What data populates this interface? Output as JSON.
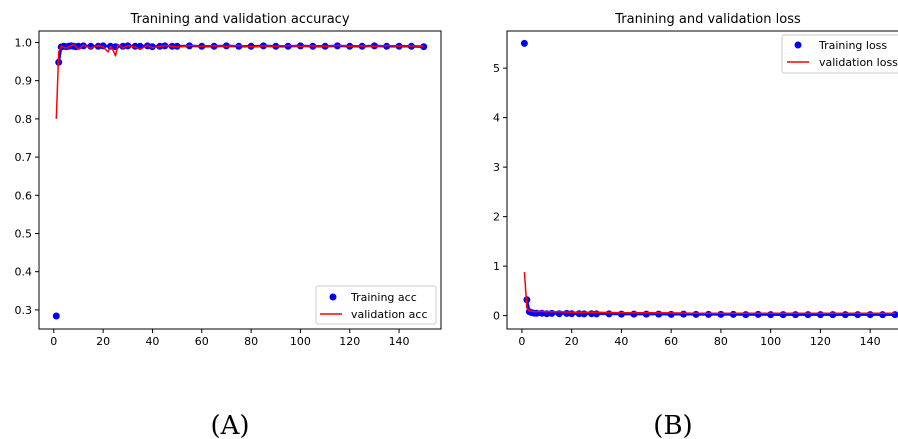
{
  "panel_labels": {
    "a": "(A)",
    "b": "(B)"
  },
  "colors": {
    "training": "#0000ff",
    "validation": "#ff0000",
    "axis": "#000000"
  },
  "chart_data": [
    {
      "type": "line",
      "title": "Tranining and validation accuracy",
      "xlabel": "",
      "ylabel": "",
      "xlim": [
        -6,
        157
      ],
      "ylim": [
        0.25,
        1.03
      ],
      "x_ticks": [
        0,
        20,
        40,
        60,
        80,
        100,
        120,
        140
      ],
      "y_ticks": [
        0.3,
        0.4,
        0.5,
        0.6,
        0.7,
        0.8,
        0.9,
        1.0
      ],
      "y_tick_labels": [
        "0.3",
        "0.4",
        "0.5",
        "0.6",
        "0.7",
        "0.8",
        "0.9",
        "1.0"
      ],
      "legend_position": "bottom-right",
      "series": [
        {
          "name": "Training acc",
          "style": "points",
          "x": [
            1,
            2,
            3,
            4,
            5,
            6,
            7,
            8,
            9,
            10,
            12,
            15,
            18,
            20,
            23,
            25,
            28,
            30,
            33,
            35,
            38,
            40,
            43,
            45,
            48,
            50,
            55,
            60,
            65,
            70,
            75,
            80,
            85,
            90,
            95,
            100,
            105,
            110,
            115,
            120,
            125,
            130,
            135,
            140,
            145,
            150
          ],
          "values": [
            0.284,
            0.948,
            0.988,
            0.99,
            0.989,
            0.99,
            0.991,
            0.99,
            0.989,
            0.99,
            0.991,
            0.99,
            0.99,
            0.991,
            0.99,
            0.989,
            0.99,
            0.991,
            0.99,
            0.99,
            0.991,
            0.989,
            0.99,
            0.991,
            0.99,
            0.99,
            0.991,
            0.99,
            0.99,
            0.991,
            0.99,
            0.99,
            0.991,
            0.99,
            0.99,
            0.991,
            0.99,
            0.99,
            0.991,
            0.99,
            0.99,
            0.991,
            0.99,
            0.99,
            0.99,
            0.989
          ]
        },
        {
          "name": "validation acc",
          "style": "line",
          "x": [
            1,
            2,
            3,
            5,
            8,
            10,
            12,
            15,
            18,
            20,
            22,
            23,
            24,
            25,
            26,
            28,
            30,
            33,
            35,
            38,
            40,
            45,
            50,
            55,
            60,
            65,
            70,
            75,
            80,
            85,
            90,
            95,
            100,
            105,
            110,
            115,
            120,
            125,
            130,
            135,
            140,
            145,
            150
          ],
          "values": [
            0.8,
            0.975,
            0.99,
            0.985,
            0.995,
            0.982,
            0.993,
            0.985,
            0.992,
            0.988,
            0.975,
            0.99,
            0.98,
            0.965,
            0.995,
            0.985,
            0.992,
            0.988,
            0.982,
            0.993,
            0.986,
            0.992,
            0.988,
            0.992,
            0.99,
            0.991,
            0.99,
            0.992,
            0.989,
            0.991,
            0.99,
            0.992,
            0.99,
            0.991,
            0.99,
            0.992,
            0.99,
            0.991,
            0.99,
            0.992,
            0.99,
            0.991,
            0.99
          ]
        }
      ]
    },
    {
      "type": "line",
      "title": "Tranining and validation loss",
      "xlabel": "",
      "ylabel": "",
      "xlim": [
        -6,
        152
      ],
      "ylim": [
        -0.27,
        5.75
      ],
      "x_ticks": [
        0,
        20,
        40,
        60,
        80,
        100,
        120,
        140
      ],
      "y_ticks": [
        0,
        1,
        2,
        3,
        4,
        5
      ],
      "y_tick_labels": [
        "0",
        "1",
        "2",
        "3",
        "4",
        "5"
      ],
      "legend_position": "top-right",
      "series": [
        {
          "name": "Training loss",
          "style": "points",
          "x": [
            1,
            2,
            3,
            4,
            5,
            6,
            8,
            10,
            12,
            15,
            18,
            20,
            23,
            25,
            28,
            30,
            35,
            40,
            45,
            50,
            55,
            60,
            65,
            70,
            75,
            80,
            85,
            90,
            95,
            100,
            105,
            110,
            115,
            120,
            125,
            130,
            135,
            140,
            145,
            150
          ],
          "values": [
            5.5,
            0.32,
            0.08,
            0.06,
            0.05,
            0.05,
            0.05,
            0.04,
            0.045,
            0.04,
            0.045,
            0.04,
            0.04,
            0.035,
            0.04,
            0.035,
            0.035,
            0.03,
            0.03,
            0.03,
            0.03,
            0.025,
            0.03,
            0.025,
            0.025,
            0.025,
            0.025,
            0.02,
            0.025,
            0.02,
            0.02,
            0.02,
            0.02,
            0.02,
            0.02,
            0.02,
            0.02,
            0.02,
            0.02,
            0.02
          ]
        },
        {
          "name": "validation loss",
          "style": "line",
          "x": [
            1,
            2,
            3,
            5,
            8,
            10,
            15,
            20,
            25,
            30,
            40,
            50,
            60,
            70,
            80,
            90,
            100,
            110,
            120,
            130,
            140,
            150
          ],
          "values": [
            0.88,
            0.15,
            0.1,
            0.08,
            0.09,
            0.08,
            0.08,
            0.07,
            0.07,
            0.07,
            0.06,
            0.06,
            0.055,
            0.05,
            0.05,
            0.05,
            0.05,
            0.05,
            0.05,
            0.05,
            0.05,
            0.05
          ]
        }
      ]
    }
  ]
}
